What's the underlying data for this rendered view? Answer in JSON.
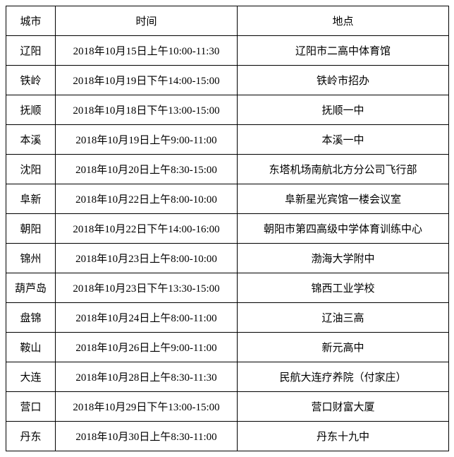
{
  "table": {
    "columns": [
      "城市",
      "时间",
      "地点"
    ],
    "rows": [
      [
        "辽阳",
        "2018年10月15日上午10:00-11:30",
        "辽阳市二高中体育馆"
      ],
      [
        "铁岭",
        "2018年10月19日下午14:00-15:00",
        "铁岭市招办"
      ],
      [
        "抚顺",
        "2018年10月18日下午13:00-15:00",
        "抚顺一中"
      ],
      [
        "本溪",
        "2018年10月19日上午9:00-11:00",
        "本溪一中"
      ],
      [
        "沈阳",
        "2018年10月20日上午8:30-15:00",
        "东塔机场南航北方分公司飞行部"
      ],
      [
        "阜新",
        "2018年10月22日上午8:00-10:00",
        "阜新星光宾馆一楼会议室"
      ],
      [
        "朝阳",
        "2018年10月22日下午14:00-16:00",
        "朝阳市第四高级中学体育训练中心"
      ],
      [
        "锦州",
        "2018年10月23日上午8:00-10:00",
        "渤海大学附中"
      ],
      [
        "葫芦岛",
        "2018年10月23日下午13:30-15:00",
        "锦西工业学校"
      ],
      [
        "盘锦",
        "2018年10月24日上午8:00-11:00",
        "辽油三高"
      ],
      [
        "鞍山",
        "2018年10月26日上午9:00-11:00",
        "新元高中"
      ],
      [
        "大连",
        "2018年10月28日上午8:30-11:30",
        "民航大连疗养院（付家庄）"
      ],
      [
        "营口",
        "2018年10月29日下午13:00-15:00",
        "营口财富大厦"
      ],
      [
        "丹东",
        "2018年10月30日上午8:30-11:00",
        "丹东十九中"
      ]
    ],
    "border_color": "#000000",
    "background_color": "#ffffff",
    "font_size": 15,
    "text_color": "#000000"
  }
}
